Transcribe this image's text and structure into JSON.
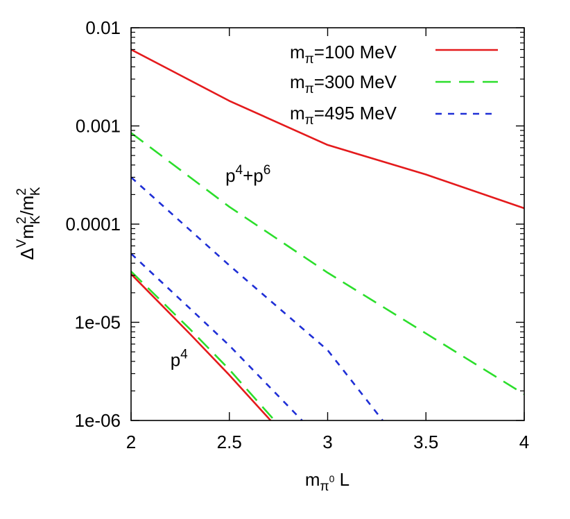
{
  "chart_data": {
    "type": "line",
    "title": "",
    "x_axis": {
      "range": [
        2,
        4
      ],
      "ticks": [
        2,
        2.5,
        3,
        3.5,
        4
      ],
      "tick_labels": [
        "2",
        "2.5",
        "3",
        "3.5",
        "4"
      ],
      "label": {
        "base": "m",
        "sub": "π",
        "subsup": "0",
        "tail": " L"
      }
    },
    "y_axis": {
      "scale": "log",
      "range": [
        1e-06,
        0.01
      ],
      "ticks": [
        1e-06,
        1e-05,
        0.0001,
        0.001,
        0.01
      ],
      "tick_labels": [
        "1e-06",
        "1e-05",
        "0.0001",
        "0.001",
        "0.01"
      ],
      "label": {
        "delta": "Δ",
        "sup": "V",
        "m1": "m",
        "sub1": "K",
        "sup1": "2",
        "slash": "/m",
        "sub2": "K",
        "sup2": "2"
      }
    },
    "grid": false,
    "legend": {
      "position": "top-right",
      "entries": [
        {
          "base": "m",
          "sub": "π",
          "text": "=100 MeV",
          "color": "#e41a1c",
          "dash": "solid"
        },
        {
          "base": "m",
          "sub": "π",
          "text": "=300 MeV",
          "color": "#2bde2b",
          "dash": "long-dash"
        },
        {
          "base": "m",
          "sub": "π",
          "text": "=495 MeV",
          "color": "#1f2fd6",
          "dash": "short-dash"
        }
      ]
    },
    "annotations": [
      {
        "id": "p4p6",
        "parts": [
          "p",
          "4",
          "+p",
          "6"
        ],
        "x": 2.48,
        "y": 0.00027
      },
      {
        "id": "p4",
        "parts": [
          "p",
          "4"
        ],
        "x": 2.2,
        "y": 3.6e-06
      }
    ],
    "series": [
      {
        "order": "p4+p6",
        "pion": "100",
        "color": "#e41a1c",
        "dash": "solid",
        "x": [
          2.0,
          2.5,
          3.0,
          3.5,
          4.0
        ],
        "y": [
          0.006,
          0.0018,
          0.00064,
          0.00032,
          0.000145
        ]
      },
      {
        "order": "p4+p6",
        "pion": "300",
        "color": "#2bde2b",
        "dash": "long-dash",
        "x": [
          2.0,
          2.5,
          3.0,
          3.5,
          4.0
        ],
        "y": [
          0.00085,
          0.00015,
          3.2e-05,
          7.7e-06,
          1.85e-06
        ]
      },
      {
        "order": "p4+p6",
        "pion": "495",
        "color": "#1f2fd6",
        "dash": "short-dash",
        "x": [
          2.0,
          2.5,
          3.0,
          3.28
        ],
        "y": [
          0.0003,
          3.8e-05,
          5.2e-06,
          1e-06
        ]
      },
      {
        "order": "p4",
        "pion": "100",
        "color": "#e41a1c",
        "dash": "solid",
        "x": [
          2.0,
          2.3,
          2.5,
          2.71
        ],
        "y": [
          3.1e-05,
          7.6e-06,
          2.9e-06,
          1e-06
        ]
      },
      {
        "order": "p4",
        "pion": "300",
        "color": "#2bde2b",
        "dash": "long-dash",
        "x": [
          2.0,
          2.3,
          2.5,
          2.73
        ],
        "y": [
          3.3e-05,
          8.5e-06,
          3.3e-06,
          1e-06
        ]
      },
      {
        "order": "p4",
        "pion": "495",
        "color": "#1f2fd6",
        "dash": "short-dash",
        "x": [
          2.0,
          2.3,
          2.5,
          2.87
        ],
        "y": [
          5e-05,
          1.38e-05,
          5.8e-06,
          1e-06
        ]
      }
    ]
  }
}
